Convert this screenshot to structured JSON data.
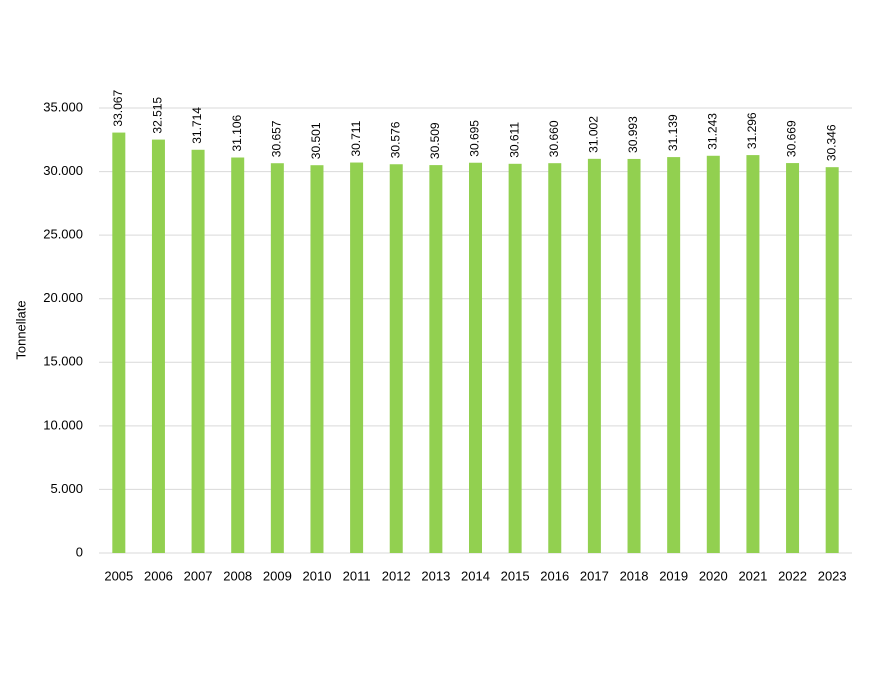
{
  "chart_data": {
    "type": "bar",
    "y_label": "Tonnellate",
    "categories": [
      "2005",
      "2006",
      "2007",
      "2008",
      "2009",
      "2010",
      "2011",
      "2012",
      "2013",
      "2014",
      "2015",
      "2016",
      "2017",
      "2018",
      "2019",
      "2020",
      "2021",
      "2022",
      "2023"
    ],
    "values": [
      33067,
      32515,
      31714,
      31106,
      30657,
      30501,
      30711,
      30576,
      30509,
      30695,
      30611,
      30660,
      31002,
      30993,
      31139,
      31243,
      31296,
      30669,
      30346
    ],
    "value_labels": [
      "33.067",
      "32.515",
      "31.714",
      "31.106",
      "30.657",
      "30.501",
      "30.711",
      "30.576",
      "30.509",
      "30.695",
      "30.611",
      "30.660",
      "31.002",
      "30.993",
      "31.139",
      "31.243",
      "31.296",
      "30.669",
      "30.346"
    ],
    "color": "#92d050",
    "ylim": [
      0,
      35000
    ],
    "yticks": [
      0,
      {
        "value": 5000,
        "label": "5.000"
      },
      {
        "value": 10000,
        "label": "10.000"
      },
      {
        "value": 15000,
        "label": "15.000"
      },
      {
        "value": 20000,
        "label": "20.000"
      },
      {
        "value": 25000,
        "label": "25.000"
      },
      {
        "value": 30000,
        "label": "30.000"
      },
      {
        "value": 35000,
        "label": "35.000"
      }
    ],
    "grid": true
  }
}
